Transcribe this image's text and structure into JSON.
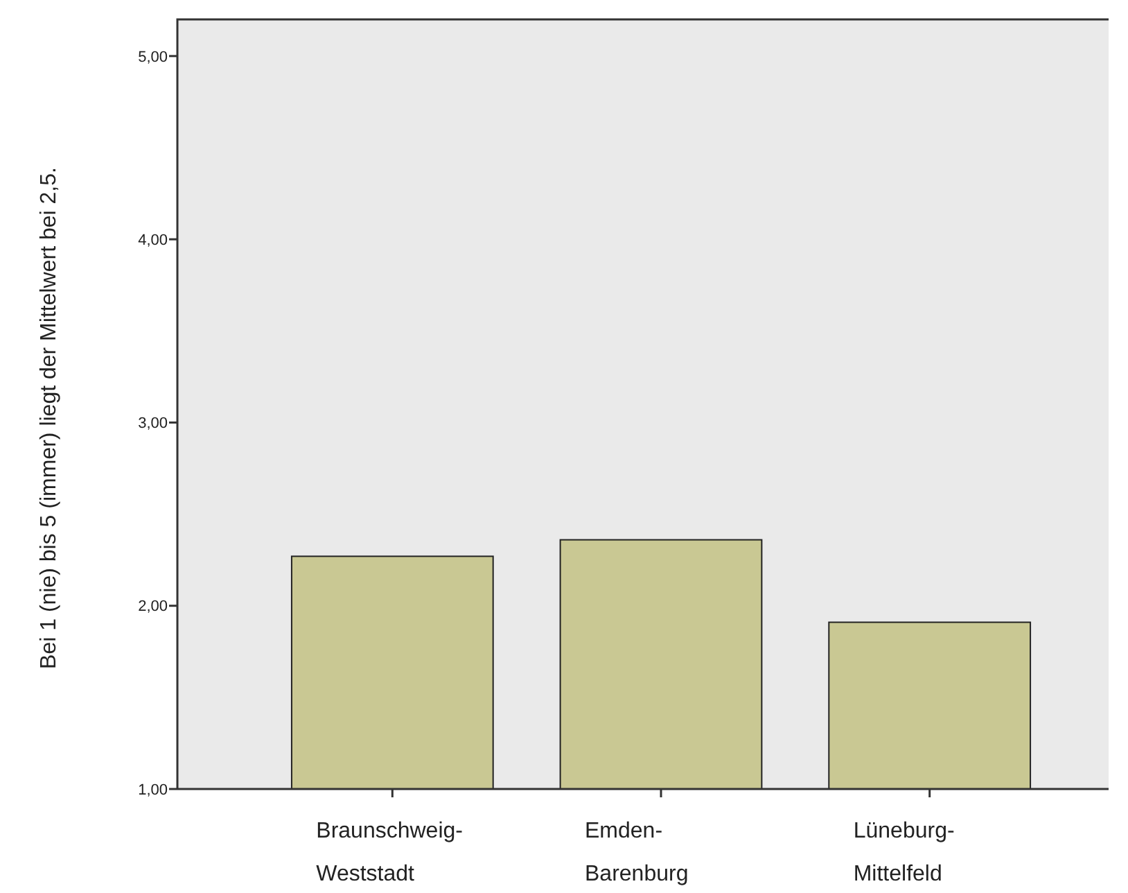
{
  "chart_data": {
    "type": "bar",
    "ylabel": "Bei 1 (nie) bis 5 (immer) liegt der Mittelwert bei 2,5.",
    "categories": [
      "Braunschweig-Weststadt",
      "Emden-Barenburg",
      "Lüneburg-Mittelfeld"
    ],
    "values": [
      2.27,
      2.36,
      1.91
    ],
    "color": "#c9c893",
    "ylim": [
      1,
      5.2
    ],
    "yticks": [
      {
        "value": 1,
        "label": "1,00"
      },
      {
        "value": 2,
        "label": "2,00"
      },
      {
        "value": 3,
        "label": "3,00"
      },
      {
        "value": 4,
        "label": "4,00"
      },
      {
        "value": 5,
        "label": "5,00"
      }
    ],
    "grid": false
  }
}
